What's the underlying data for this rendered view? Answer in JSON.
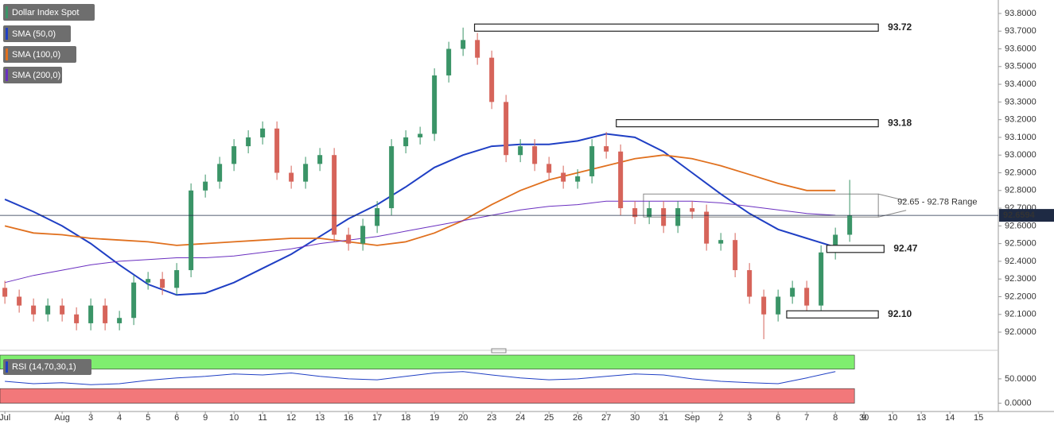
{
  "chart_data": {
    "type": "candlestick",
    "title": "Dollar Index Spot",
    "up_color": "#3a9467",
    "down_color": "#d6645a",
    "candles": {
      "x": [
        0,
        0.5,
        1,
        1.5,
        2,
        2.5,
        3,
        3.5,
        4,
        4.5,
        5,
        5.5,
        6,
        6.5,
        7,
        7.5,
        8,
        8.5,
        9,
        9.5,
        10,
        10.5,
        11,
        11.5,
        12,
        12.5,
        13,
        13.5,
        14,
        14.5,
        15,
        15.5,
        16,
        16.5,
        17,
        17.5,
        18,
        18.5,
        19,
        19.5,
        20,
        20.5,
        21,
        21.5,
        22,
        22.5,
        23,
        23.5,
        24,
        24.5,
        25,
        25.5,
        26,
        26.5,
        27,
        27.5,
        28,
        28.5,
        29,
        29.5
      ],
      "open": [
        92.25,
        92.2,
        92.15,
        92.1,
        92.15,
        92.1,
        92.05,
        92.15,
        92.05,
        92.08,
        92.28,
        92.3,
        92.25,
        92.35,
        92.8,
        92.85,
        92.95,
        93.05,
        93.1,
        93.15,
        92.9,
        92.85,
        92.95,
        93.0,
        92.55,
        92.5,
        92.6,
        92.7,
        93.05,
        93.1,
        93.12,
        93.45,
        93.6,
        93.65,
        93.55,
        93.3,
        93.0,
        93.05,
        92.95,
        92.9,
        92.85,
        92.88,
        93.05,
        93.02,
        92.7,
        92.65,
        92.7,
        92.6,
        92.7,
        92.68,
        92.5,
        92.52,
        92.35,
        92.2,
        92.1,
        92.2,
        92.25,
        92.15,
        92.45,
        92.55
      ],
      "high": [
        92.29,
        92.24,
        92.19,
        92.19,
        92.19,
        92.14,
        92.19,
        92.19,
        92.12,
        92.32,
        92.34,
        92.34,
        92.39,
        92.84,
        92.89,
        92.99,
        93.09,
        93.14,
        93.19,
        93.19,
        92.94,
        92.99,
        93.04,
        93.04,
        92.59,
        92.64,
        92.74,
        93.09,
        93.14,
        93.16,
        93.49,
        93.64,
        93.72,
        93.69,
        93.59,
        93.34,
        93.09,
        93.09,
        92.99,
        92.94,
        92.92,
        93.09,
        93.13,
        93.06,
        92.74,
        92.74,
        92.74,
        92.74,
        92.74,
        92.72,
        92.56,
        92.56,
        92.39,
        92.24,
        92.24,
        92.29,
        92.29,
        92.49,
        92.59,
        92.86
      ],
      "low": [
        92.16,
        92.11,
        92.06,
        92.06,
        92.06,
        92.01,
        92.01,
        92.01,
        92.01,
        92.04,
        92.24,
        92.21,
        92.21,
        92.31,
        92.76,
        92.81,
        92.91,
        93.01,
        93.06,
        92.86,
        92.81,
        92.81,
        92.91,
        92.51,
        92.46,
        92.46,
        92.56,
        92.66,
        93.01,
        93.06,
        93.08,
        93.41,
        93.56,
        93.51,
        93.26,
        92.96,
        92.96,
        92.91,
        92.86,
        92.81,
        92.81,
        92.84,
        92.98,
        92.66,
        92.61,
        92.61,
        92.56,
        92.56,
        92.64,
        92.46,
        92.46,
        92.31,
        92.16,
        91.96,
        92.06,
        92.16,
        92.11,
        92.11,
        92.41,
        92.51
      ],
      "close": [
        92.2,
        92.15,
        92.1,
        92.15,
        92.1,
        92.05,
        92.15,
        92.05,
        92.08,
        92.28,
        92.3,
        92.25,
        92.35,
        92.8,
        92.85,
        92.95,
        93.05,
        93.1,
        93.15,
        92.9,
        92.85,
        92.95,
        93.0,
        92.55,
        92.5,
        92.6,
        92.7,
        93.05,
        93.1,
        93.12,
        93.45,
        93.6,
        93.65,
        93.55,
        93.3,
        93.0,
        93.05,
        92.95,
        92.9,
        92.85,
        92.88,
        93.05,
        93.02,
        92.7,
        92.65,
        92.7,
        92.6,
        92.7,
        92.68,
        92.5,
        92.52,
        92.35,
        92.2,
        92.1,
        92.2,
        92.25,
        92.15,
        92.45,
        92.55,
        92.66
      ]
    },
    "x_days": [
      0,
      1,
      2,
      3,
      4,
      5,
      6,
      7,
      8,
      9,
      10,
      11,
      12,
      13,
      14,
      15,
      16,
      17,
      18,
      19,
      20,
      21,
      22,
      23,
      24,
      25,
      26,
      27,
      28,
      29
    ],
    "sma": [
      {
        "name": "SMA (50,0)",
        "color": "#1f3fc4",
        "values": [
          92.75,
          92.68,
          92.6,
          92.5,
          92.38,
          92.27,
          92.21,
          92.22,
          92.28,
          92.36,
          92.44,
          92.54,
          92.64,
          92.72,
          92.82,
          92.93,
          93.0,
          93.05,
          93.06,
          93.06,
          93.08,
          93.12,
          93.1,
          93.02,
          92.9,
          92.78,
          92.67,
          92.58,
          92.53,
          92.48
        ]
      },
      {
        "name": "SMA (100,0)",
        "color": "#e0701e",
        "values": [
          92.6,
          92.56,
          92.55,
          92.53,
          92.52,
          92.51,
          92.49,
          92.5,
          92.51,
          92.52,
          92.53,
          92.53,
          92.51,
          92.49,
          92.51,
          92.56,
          92.63,
          92.72,
          92.8,
          92.86,
          92.9,
          92.94,
          92.98,
          93.0,
          92.98,
          92.94,
          92.89,
          92.84,
          92.8,
          92.8
        ]
      },
      {
        "name": "SMA (200,0)",
        "color": "#6a2fc0",
        "values": [
          92.28,
          92.32,
          92.35,
          92.38,
          92.4,
          92.41,
          92.42,
          92.42,
          92.43,
          92.45,
          92.47,
          92.5,
          92.52,
          92.54,
          92.57,
          92.6,
          92.63,
          92.66,
          92.69,
          92.71,
          92.72,
          92.74,
          92.74,
          92.74,
          92.74,
          92.73,
          92.71,
          92.69,
          92.67,
          92.66
        ]
      }
    ],
    "last_price": 92.6594,
    "levels": [
      {
        "value": 93.72,
        "label": "93.72",
        "from": 16.4,
        "to": 30.5
      },
      {
        "value": 93.18,
        "label": "93.18",
        "from": 21.35,
        "to": 30.5
      },
      {
        "value": 92.47,
        "label": "92.47",
        "from": 28.7,
        "to": 30.7
      },
      {
        "value": 92.1,
        "label": "92.10",
        "from": 27.3,
        "to": 30.5
      }
    ],
    "range": {
      "low": 92.65,
      "high": 92.78,
      "from": 22.3,
      "to": 30.5,
      "label": "92.65 - 92.78 Range"
    },
    "xlim": [
      -0.17,
      34.69
    ],
    "ylim": [
      91.915,
      93.876
    ],
    "xticks": [
      {
        "value": 0,
        "label": "Jul"
      },
      30,
      {
        "value": 2,
        "label": "Aug"
      },
      3,
      4,
      5,
      6,
      {
        "value": 7,
        "label": "9"
      },
      {
        "value": 8,
        "label": "10"
      },
      {
        "value": 9,
        "label": "11"
      },
      {
        "value": 10,
        "label": "12"
      },
      {
        "value": 11,
        "label": "13"
      },
      {
        "value": 12,
        "label": "16"
      },
      {
        "value": 13,
        "label": "17"
      },
      {
        "value": 14,
        "label": "18"
      },
      {
        "value": 15,
        "label": "19"
      },
      {
        "value": 16,
        "label": "20"
      },
      {
        "value": 17,
        "label": "23"
      },
      {
        "value": 18,
        "label": "24"
      },
      {
        "value": 19,
        "label": "25"
      },
      {
        "value": 20,
        "label": "26"
      },
      {
        "value": 21,
        "label": "27"
      },
      {
        "value": 22,
        "label": "30"
      },
      {
        "value": 23,
        "label": "31"
      },
      {
        "value": 24,
        "label": "Sep"
      },
      {
        "value": 25,
        "label": "2"
      },
      {
        "value": 26,
        "label": "3"
      },
      {
        "value": 27,
        "label": "6"
      },
      {
        "value": 28,
        "label": "7"
      },
      {
        "value": 29,
        "label": "8"
      },
      {
        "value": 30,
        "label": "9"
      },
      {
        "value": 31,
        "label": "10"
      },
      {
        "value": 32,
        "label": "13"
      },
      {
        "value": 33,
        "label": "14"
      },
      {
        "value": 34,
        "label": "15"
      }
    ],
    "yticks": [
      {
        "value": 92.0,
        "label": "92.0000"
      },
      {
        "value": 92.1,
        "label": "92.1000"
      },
      {
        "value": 92.2,
        "label": "92.2000"
      },
      {
        "value": 92.3,
        "label": "92.3000"
      },
      {
        "value": 92.4,
        "label": "92.4000"
      },
      {
        "value": 92.5,
        "label": "92.5000"
      },
      {
        "value": 92.6,
        "label": "92.6000"
      },
      {
        "value": 92.7,
        "label": "92.7000"
      },
      {
        "value": 92.8,
        "label": "92.8000"
      },
      {
        "value": 92.9,
        "label": "92.9000"
      },
      {
        "value": 93.0,
        "label": "93.0000"
      },
      {
        "value": 93.1,
        "label": "93.1000"
      },
      {
        "value": 93.2,
        "label": "93.2000"
      },
      {
        "value": 93.3,
        "label": "93.3000"
      },
      {
        "value": 93.4,
        "label": "93.4000"
      },
      {
        "value": 93.5,
        "label": "93.5000"
      },
      {
        "value": 93.6,
        "label": "93.6000"
      },
      {
        "value": 93.7,
        "label": "93.7000"
      },
      {
        "value": 93.8,
        "label": "93.8000"
      }
    ],
    "rsi": {
      "name": "RSI (14,70,30,1)",
      "color": "#1f3fc4",
      "overbought": 70,
      "oversold": 30,
      "values": [
        45,
        40,
        42,
        38,
        40,
        47,
        52,
        55,
        60,
        58,
        62,
        55,
        50,
        48,
        55,
        62,
        65,
        58,
        52,
        48,
        50,
        55,
        60,
        58,
        50,
        45,
        42,
        40,
        52,
        65
      ],
      "ylim": [
        -17,
        102
      ],
      "yticks": [
        {
          "value": 50,
          "label": "50.0000"
        },
        {
          "value": 0,
          "label": "0.0000"
        }
      ]
    }
  }
}
